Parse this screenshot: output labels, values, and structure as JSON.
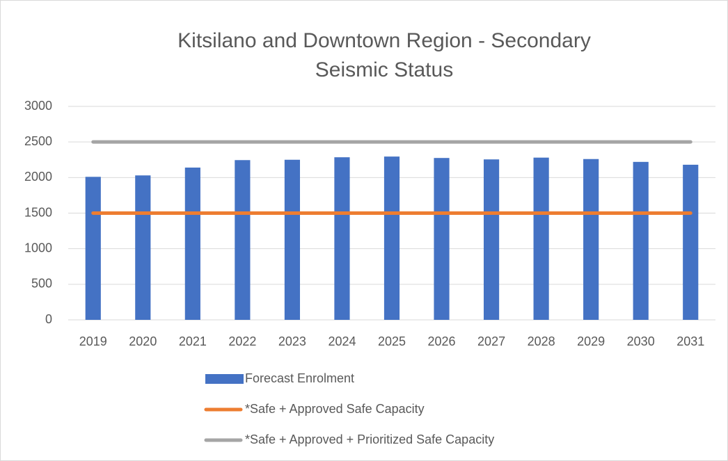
{
  "chart_data": {
    "type": "bar",
    "title": "Kitsilano and Downtown Region - Secondary Seismic Status",
    "categories": [
      "2019",
      "2020",
      "2021",
      "2022",
      "2023",
      "2024",
      "2025",
      "2026",
      "2027",
      "2028",
      "2029",
      "2030",
      "2031"
    ],
    "series": [
      {
        "name": "Forecast Enrolment",
        "type": "bar",
        "color": "#4472c4",
        "values": [
          2010,
          2030,
          2140,
          2245,
          2250,
          2285,
          2295,
          2275,
          2255,
          2280,
          2260,
          2220,
          2180
        ]
      },
      {
        "name": "*Safe + Approved Safe Capacity",
        "type": "line",
        "color": "#ed7d31",
        "values": [
          1500,
          1500,
          1500,
          1500,
          1500,
          1500,
          1500,
          1500,
          1500,
          1500,
          1500,
          1500,
          1500
        ]
      },
      {
        "name": "*Safe + Approved + Prioritized Safe Capacity",
        "type": "line",
        "color": "#a5a5a5",
        "values": [
          2500,
          2500,
          2500,
          2500,
          2500,
          2500,
          2500,
          2500,
          2500,
          2500,
          2500,
          2500,
          2500
        ]
      }
    ],
    "ylim": [
      0,
      3000
    ],
    "yticks": [
      0,
      500,
      1000,
      1500,
      2000,
      2500,
      3000
    ],
    "grid": true
  }
}
